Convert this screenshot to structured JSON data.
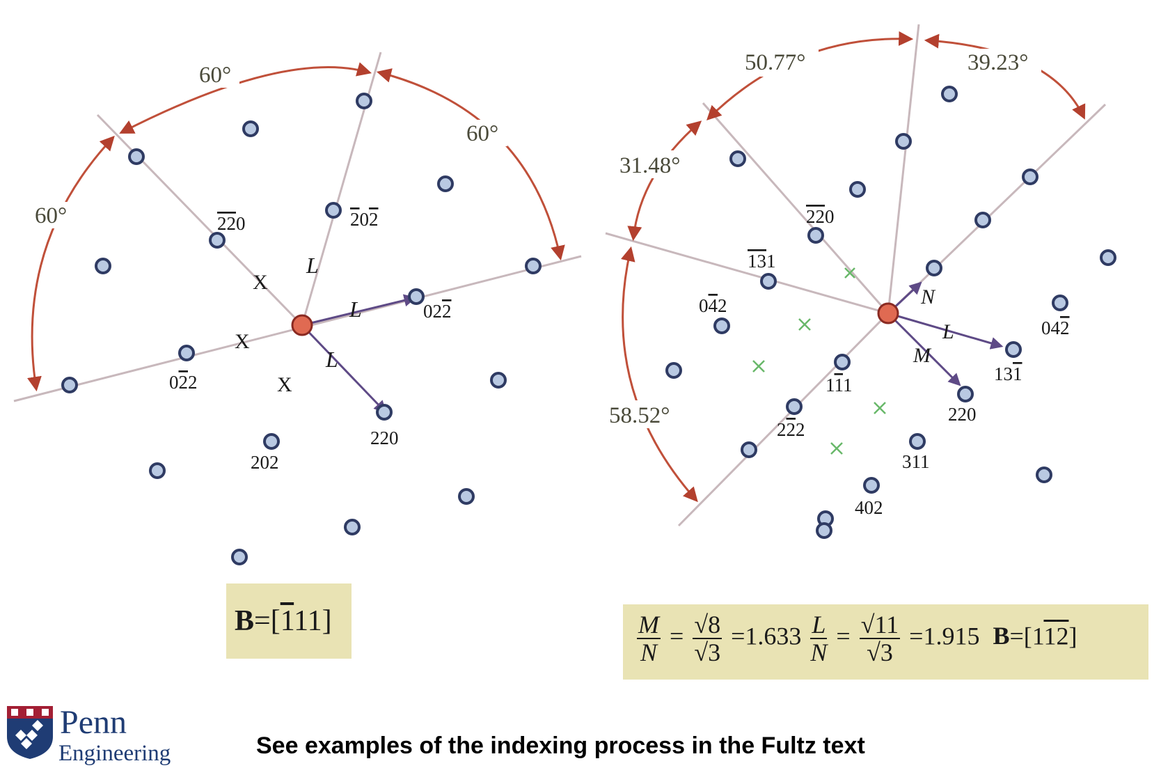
{
  "left_diagram": {
    "angles": [
      "60°",
      "60°",
      "60°"
    ],
    "spot_labels": [
      {
        "id": "m2m20",
        "hkl_parts": [
          {
            "t": "2",
            "bar": true
          },
          {
            "t": "2",
            "bar": true
          },
          {
            "t": "0",
            "bar": false
          }
        ]
      },
      {
        "id": "m20m2",
        "hkl_parts": [
          {
            "t": "2",
            "bar": true
          },
          {
            "t": "0",
            "bar": false
          },
          {
            "t": "2",
            "bar": true
          }
        ]
      },
      {
        "id": "02m2",
        "hkl_parts": [
          {
            "t": "0",
            "bar": false
          },
          {
            "t": "2",
            "bar": false
          },
          {
            "t": "2",
            "bar": true
          }
        ]
      },
      {
        "id": "0m22",
        "hkl_parts": [
          {
            "t": "0",
            "bar": false
          },
          {
            "t": "2",
            "bar": true
          },
          {
            "t": "2",
            "bar": false
          }
        ]
      },
      {
        "id": "220",
        "hkl_parts": [
          {
            "t": "220",
            "bar": false
          }
        ]
      },
      {
        "id": "202",
        "hkl_parts": [
          {
            "t": "202",
            "bar": false
          }
        ]
      }
    ],
    "vector_labels": [
      "L",
      "L",
      "L"
    ],
    "zone_axis": {
      "label": "B",
      "parts": [
        {
          "t": "=[",
          "bar": false
        },
        {
          "t": "1",
          "bar": true
        },
        {
          "t": "11]",
          "bar": false
        }
      ]
    }
  },
  "right_diagram": {
    "angles": [
      "50.77°",
      "39.23°",
      "31.48°",
      "58.52°"
    ],
    "spot_labels": [
      {
        "id": "m2m20",
        "hkl_parts": [
          {
            "t": "2",
            "bar": true
          },
          {
            "t": "2",
            "bar": true
          },
          {
            "t": "0",
            "bar": false
          }
        ]
      },
      {
        "id": "m1m31",
        "hkl_parts": [
          {
            "t": "1",
            "bar": true
          },
          {
            "t": "3",
            "bar": true
          },
          {
            "t": "1",
            "bar": false
          }
        ]
      },
      {
        "id": "0m42",
        "hkl_parts": [
          {
            "t": "0",
            "bar": false
          },
          {
            "t": "4",
            "bar": true
          },
          {
            "t": "2",
            "bar": false
          }
        ]
      },
      {
        "id": "1m11",
        "hkl_parts": [
          {
            "t": "1",
            "bar": false
          },
          {
            "t": "1",
            "bar": true
          },
          {
            "t": "1",
            "bar": false
          }
        ]
      },
      {
        "id": "2m22",
        "hkl_parts": [
          {
            "t": "2",
            "bar": false
          },
          {
            "t": "2",
            "bar": true
          },
          {
            "t": "2",
            "bar": false
          }
        ]
      },
      {
        "id": "13m1",
        "hkl_parts": [
          {
            "t": "13",
            "bar": false
          },
          {
            "t": "1",
            "bar": true
          }
        ]
      },
      {
        "id": "04m2",
        "hkl_parts": [
          {
            "t": "04",
            "bar": false
          },
          {
            "t": "2",
            "bar": true
          }
        ]
      },
      {
        "id": "220",
        "hkl_parts": [
          {
            "t": "220",
            "bar": false
          }
        ]
      },
      {
        "id": "311",
        "hkl_parts": [
          {
            "t": "311",
            "bar": false
          }
        ]
      },
      {
        "id": "402",
        "hkl_parts": [
          {
            "t": "402",
            "bar": false
          }
        ]
      }
    ],
    "vector_labels": [
      "N",
      "L",
      "M"
    ],
    "equation": {
      "frac1_num": "M",
      "frac1_den": "N",
      "eq1": "=",
      "frac2_num": "√8",
      "frac2_den": "√3",
      "val1": "=1.633",
      "frac3_num": "L",
      "frac3_den": "N",
      "eq2": "=",
      "frac4_num": "√11",
      "frac4_den": "√3",
      "val2": "=1.915",
      "zone_label": "B",
      "zone_parts": [
        {
          "t": "=[1",
          "bar": false
        },
        {
          "t": "1",
          "bar": true
        },
        {
          "t": "2",
          "bar": true
        },
        {
          "t": "]",
          "bar": false
        }
      ]
    }
  },
  "caption": "See examples of the indexing process in the Fultz text",
  "logo": {
    "line1": "Penn",
    "line2": "Engineering"
  },
  "colors": {
    "spot_fill": "#b9c9e2",
    "spot_stroke": "#2f3b63",
    "center": "#e06a52",
    "arc": "#c0503a",
    "line": "#c8b8bc",
    "vector": "#5e4a86",
    "box": "#e9e3b4",
    "cross_green": "#69b86a"
  }
}
